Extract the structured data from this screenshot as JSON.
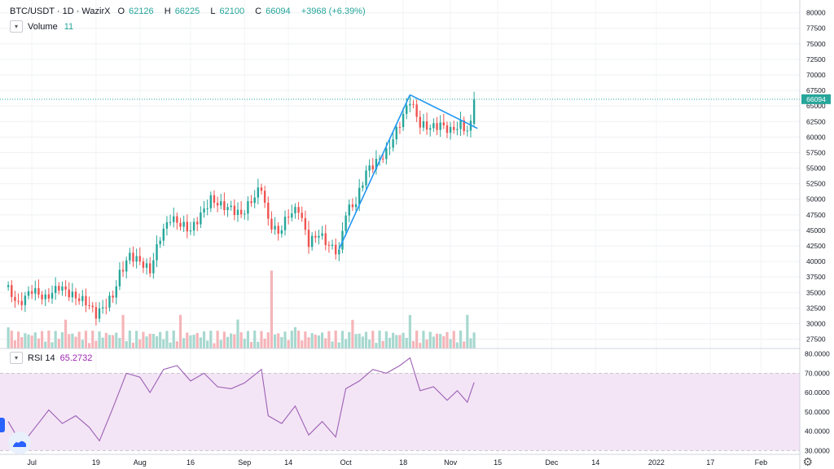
{
  "header": {
    "symbol": "BTC/USDT · 1D · WazirX",
    "open_label": "O",
    "open": "62126",
    "high_label": "H",
    "high": "66225",
    "low_label": "L",
    "low": "62100",
    "close_label": "C",
    "close": "66094",
    "change": "+3968 (+6.39%)"
  },
  "volume_legend": {
    "label": "Volume",
    "value": "11"
  },
  "rsi_legend": {
    "label": "RSI 14",
    "value": "65.2732"
  },
  "price_tag": "66094",
  "colors": {
    "up": "#26a69a",
    "down": "#ef5350",
    "vol_up": "#a7d8cf",
    "vol_down": "#f5b5b9",
    "rsi_line": "#9c5fb5",
    "rsi_band": "#f3e5f5",
    "trendline": "#2196f3",
    "last_price": "#26a69a"
  },
  "icons": [
    "chevron-down-icon",
    "tradingview-logo-icon",
    "gear-icon"
  ],
  "chart_data": [
    {
      "type": "candlestick",
      "title": "BTC/USDT · 1D · WazirX",
      "price_axis": [
        27500,
        30000,
        32500,
        35000,
        37500,
        40000,
        42500,
        45000,
        47500,
        50000,
        52500,
        55000,
        57500,
        60000,
        62500,
        65000,
        67500,
        70000,
        72500,
        75000,
        77500,
        80000
      ],
      "ylim": [
        26000,
        81000
      ],
      "time_axis": [
        "Jul",
        "19",
        "Aug",
        "16",
        "Sep",
        "14",
        "Oct",
        "18",
        "Nov",
        "15",
        "Dec",
        "14",
        "2022",
        "17",
        "Feb"
      ],
      "close_series": [
        {
          "date": "2021-06-23",
          "close": 35500
        },
        {
          "date": "2021-06-26",
          "close": 33000
        },
        {
          "date": "2021-06-30",
          "close": 35500
        },
        {
          "date": "2021-07-04",
          "close": 34000
        },
        {
          "date": "2021-07-08",
          "close": 36000
        },
        {
          "date": "2021-07-12",
          "close": 34500
        },
        {
          "date": "2021-07-16",
          "close": 33500
        },
        {
          "date": "2021-07-19",
          "close": 31500
        },
        {
          "date": "2021-07-21",
          "close": 32500
        },
        {
          "date": "2021-07-24",
          "close": 34500
        },
        {
          "date": "2021-07-26",
          "close": 38000
        },
        {
          "date": "2021-07-29",
          "close": 41000
        },
        {
          "date": "2021-08-01",
          "close": 40000
        },
        {
          "date": "2021-08-04",
          "close": 38500
        },
        {
          "date": "2021-08-07",
          "close": 44000
        },
        {
          "date": "2021-08-10",
          "close": 47000
        },
        {
          "date": "2021-08-13",
          "close": 46000
        },
        {
          "date": "2021-08-16",
          "close": 45000
        },
        {
          "date": "2021-08-19",
          "close": 47500
        },
        {
          "date": "2021-08-22",
          "close": 50000
        },
        {
          "date": "2021-08-25",
          "close": 49000
        },
        {
          "date": "2021-08-28",
          "close": 48500
        },
        {
          "date": "2021-08-31",
          "close": 47500
        },
        {
          "date": "2021-09-04",
          "close": 50500
        },
        {
          "date": "2021-09-06",
          "close": 52000
        },
        {
          "date": "2021-09-08",
          "close": 46500
        },
        {
          "date": "2021-09-11",
          "close": 44500
        },
        {
          "date": "2021-09-14",
          "close": 47500
        },
        {
          "date": "2021-09-17",
          "close": 48500
        },
        {
          "date": "2021-09-20",
          "close": 43000
        },
        {
          "date": "2021-09-23",
          "close": 44500
        },
        {
          "date": "2021-09-26",
          "close": 42500
        },
        {
          "date": "2021-09-29",
          "close": 41500
        },
        {
          "date": "2021-10-01",
          "close": 48000
        },
        {
          "date": "2021-10-04",
          "close": 49500
        },
        {
          "date": "2021-10-07",
          "close": 54500
        },
        {
          "date": "2021-10-10",
          "close": 56000
        },
        {
          "date": "2021-10-13",
          "close": 57500
        },
        {
          "date": "2021-10-16",
          "close": 61000
        },
        {
          "date": "2021-10-20",
          "close": 66000
        },
        {
          "date": "2021-10-23",
          "close": 62000
        },
        {
          "date": "2021-10-26",
          "close": 61500
        },
        {
          "date": "2021-10-29",
          "close": 62000
        },
        {
          "date": "2021-11-01",
          "close": 61000
        },
        {
          "date": "2021-11-04",
          "close": 62000
        },
        {
          "date": "2021-11-06",
          "close": 61000
        },
        {
          "date": "2021-11-07",
          "close": 62126
        },
        {
          "date": "2021-11-08",
          "close": 66094
        }
      ],
      "trendlines": [
        {
          "from": {
            "date": "2021-09-29",
            "price": 42000
          },
          "to": {
            "date": "2021-10-20",
            "price": 66800
          }
        },
        {
          "from": {
            "date": "2021-10-20",
            "price": 66800
          },
          "to": {
            "date": "2021-11-09",
            "price": 61400
          }
        }
      ],
      "last_price": 66094
    },
    {
      "type": "bar",
      "title": "Volume",
      "note": "volume panel (relative heights)",
      "values_ref": "close_series"
    },
    {
      "type": "line",
      "title": "RSI 14",
      "yaxis": [
        30,
        40,
        50,
        60,
        70,
        80
      ],
      "ylim": [
        28,
        82
      ],
      "bands": [
        30,
        70
      ],
      "points": [
        {
          "date": "2021-06-23",
          "value": 45
        },
        {
          "date": "2021-06-27",
          "value": 33
        },
        {
          "date": "2021-07-01",
          "value": 42
        },
        {
          "date": "2021-07-05",
          "value": 51
        },
        {
          "date": "2021-07-09",
          "value": 44
        },
        {
          "date": "2021-07-13",
          "value": 48
        },
        {
          "date": "2021-07-17",
          "value": 42
        },
        {
          "date": "2021-07-20",
          "value": 35
        },
        {
          "date": "2021-07-24",
          "value": 52
        },
        {
          "date": "2021-07-28",
          "value": 70
        },
        {
          "date": "2021-08-01",
          "value": 68
        },
        {
          "date": "2021-08-04",
          "value": 60
        },
        {
          "date": "2021-08-08",
          "value": 72
        },
        {
          "date": "2021-08-12",
          "value": 74
        },
        {
          "date": "2021-08-16",
          "value": 66
        },
        {
          "date": "2021-08-20",
          "value": 70
        },
        {
          "date": "2021-08-24",
          "value": 63
        },
        {
          "date": "2021-08-28",
          "value": 62
        },
        {
          "date": "2021-09-01",
          "value": 65
        },
        {
          "date": "2021-09-06",
          "value": 72
        },
        {
          "date": "2021-09-08",
          "value": 48
        },
        {
          "date": "2021-09-12",
          "value": 44
        },
        {
          "date": "2021-09-16",
          "value": 53
        },
        {
          "date": "2021-09-20",
          "value": 38
        },
        {
          "date": "2021-09-24",
          "value": 45
        },
        {
          "date": "2021-09-28",
          "value": 37
        },
        {
          "date": "2021-10-01",
          "value": 62
        },
        {
          "date": "2021-10-05",
          "value": 66
        },
        {
          "date": "2021-10-09",
          "value": 72
        },
        {
          "date": "2021-10-13",
          "value": 70
        },
        {
          "date": "2021-10-17",
          "value": 74
        },
        {
          "date": "2021-10-20",
          "value": 78
        },
        {
          "date": "2021-10-23",
          "value": 61
        },
        {
          "date": "2021-10-27",
          "value": 63
        },
        {
          "date": "2021-10-31",
          "value": 56
        },
        {
          "date": "2021-11-03",
          "value": 61
        },
        {
          "date": "2021-11-06",
          "value": 55
        },
        {
          "date": "2021-11-08",
          "value": 65.27
        }
      ]
    }
  ]
}
